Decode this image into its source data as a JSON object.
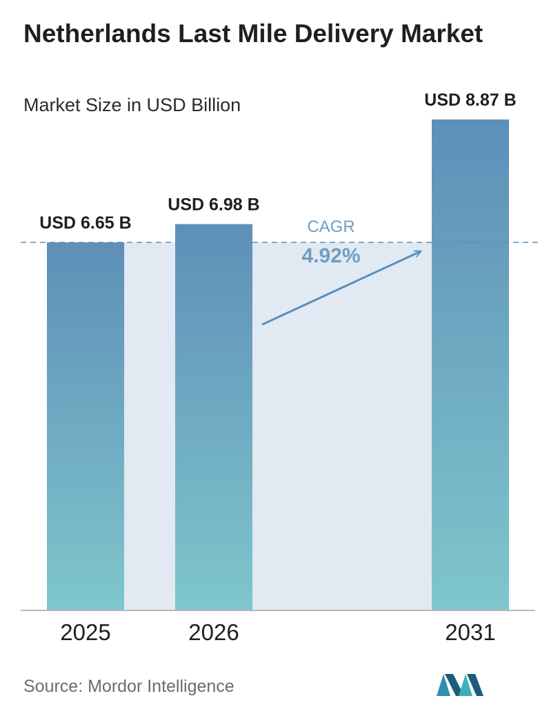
{
  "header": {
    "title": "Netherlands Last Mile Delivery Market",
    "subtitle": "Market Size in USD Billion"
  },
  "chart_data": {
    "type": "bar",
    "categories": [
      "2025",
      "2026",
      "2031"
    ],
    "values": [
      6.65,
      6.98,
      8.87
    ],
    "value_labels": [
      "USD 6.65 B",
      "USD 6.98 B",
      "USD 8.87 B"
    ],
    "title": "Netherlands Last Mile Delivery Market",
    "subtitle": "Market Size in USD Billion",
    "xlabel": "",
    "ylabel": "",
    "grid": false,
    "reference_line": {
      "value": 6.65,
      "style": "dashed"
    },
    "annotation": {
      "label": "CAGR",
      "value": "4.92%"
    },
    "colors": {
      "bar_top": "#5e8fb8",
      "bar_bottom": "#7fc6cc",
      "fill_band": "#e1e9f2",
      "arrow": "#5b8fb9",
      "cagr_label": "#6f9dc2",
      "baseline": "#b8b8b8"
    }
  },
  "footer": {
    "source": "Source:  Mordor Intelligence",
    "logo_icon": "mordor-intelligence-logo-icon"
  }
}
